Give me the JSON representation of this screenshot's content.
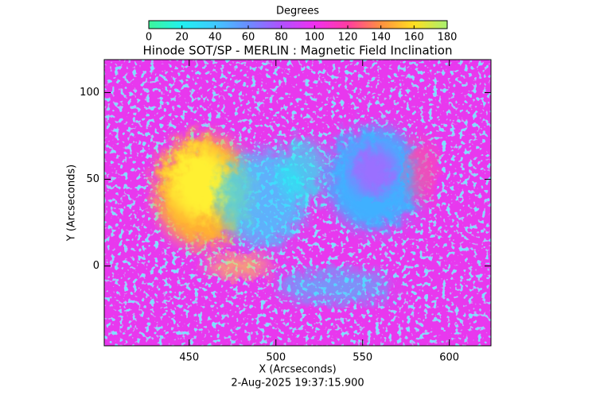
{
  "chart_data": {
    "type": "heatmap",
    "title": "Hinode SOT/SP - MERLIN : Magnetic Field Inclination",
    "xlabel": "X (Arcseconds)",
    "ylabel": "Y (Arcseconds)",
    "xlim": [
      401,
      624
    ],
    "ylim": [
      -46,
      119
    ],
    "xticks": [
      450,
      500,
      550,
      600
    ],
    "yticks": [
      0,
      50,
      100
    ],
    "colorbar": {
      "label": "Degrees",
      "range": [
        0,
        180
      ],
      "ticks": [
        0,
        20,
        40,
        60,
        80,
        100,
        120,
        140,
        160,
        180
      ],
      "colors": [
        "#3cf59a",
        "#20f0f0",
        "#40c8ff",
        "#6a8cff",
        "#b050ff",
        "#f030f0",
        "#ff3ca0",
        "#ff9040",
        "#ffe020",
        "#a8f070"
      ]
    },
    "annotation": "2-Aug-2025 19:37:15.900"
  }
}
